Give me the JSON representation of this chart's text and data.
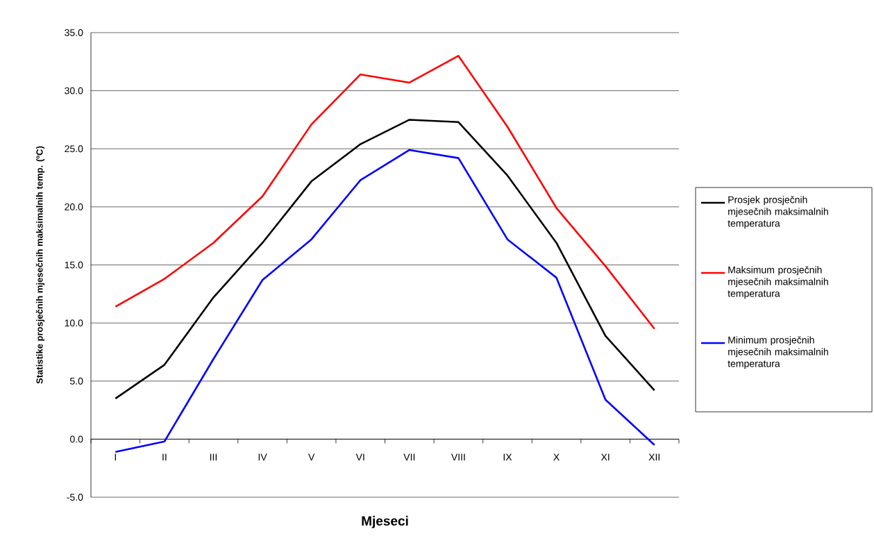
{
  "chart_data": {
    "type": "line",
    "xlabel": "Mjeseci",
    "ylabel": "Statistike prosječnih mjesečnih maksimalnih temp. (ºC)",
    "categories": [
      "I",
      "II",
      "III",
      "IV",
      "V",
      "VI",
      "VII",
      "VIII",
      "IX",
      "X",
      "XI",
      "XII"
    ],
    "series": [
      {
        "name": "Prosjek prosječnih mjesečnih maksimalnih temperatura",
        "color": "#000000",
        "values": [
          3.5,
          6.4,
          12.2,
          16.9,
          22.2,
          25.4,
          27.5,
          27.3,
          22.7,
          16.9,
          8.9,
          4.2
        ]
      },
      {
        "name": "Maksimum prosječnih mjesečnih maksimalnih temperatura",
        "color": "#ff0000",
        "values": [
          11.4,
          13.8,
          16.9,
          20.9,
          27.1,
          31.4,
          30.7,
          33.0,
          26.9,
          19.9,
          14.9,
          9.5
        ]
      },
      {
        "name": "Minimum prosječnih mjesečnih maksimalnih temperatura",
        "color": "#0000ff",
        "values": [
          -1.1,
          -0.2,
          6.9,
          13.7,
          17.2,
          22.3,
          24.9,
          24.2,
          17.2,
          13.9,
          3.4,
          -0.5
        ]
      }
    ],
    "ylim": [
      -5,
      35
    ],
    "yticks": [
      {
        "value": -5,
        "label": "-5.0"
      },
      {
        "value": 0,
        "label": "0.0"
      },
      {
        "value": 5,
        "label": "5.0"
      },
      {
        "value": 10,
        "label": "10.0"
      },
      {
        "value": 15,
        "label": "15.0"
      },
      {
        "value": 20,
        "label": "20.0"
      },
      {
        "value": 25,
        "label": "25.0"
      },
      {
        "value": 30,
        "label": "30.0"
      },
      {
        "value": 35,
        "label": "35.0"
      }
    ],
    "grid": "y",
    "legend": "right",
    "marker": "none",
    "line_style": "solid"
  }
}
